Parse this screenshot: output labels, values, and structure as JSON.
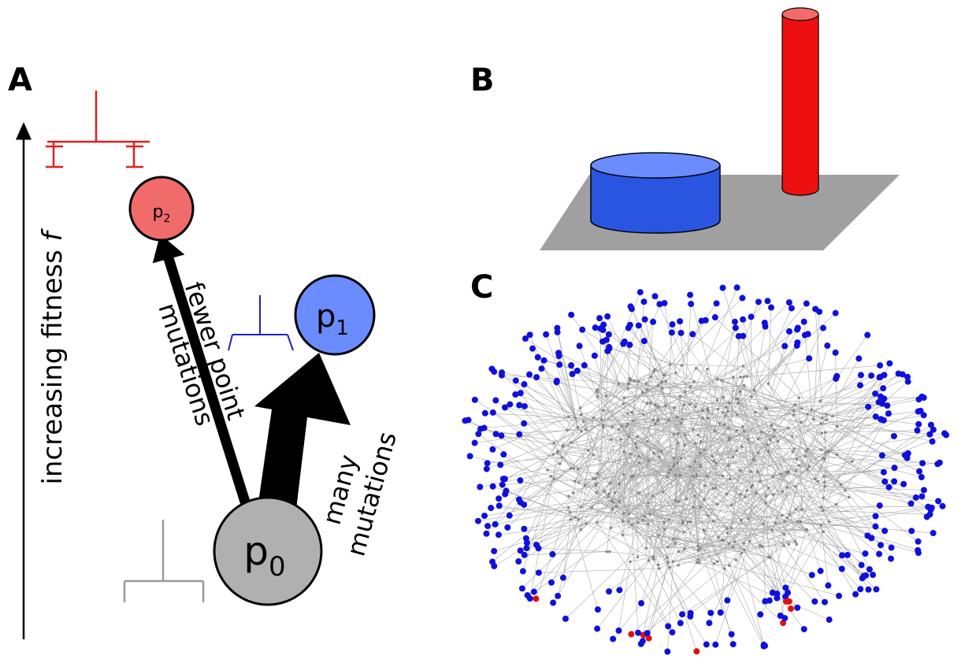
{
  "panels": {
    "a": {
      "letter": "A",
      "axis_label": "increasing fitness",
      "axis_symbol": "f",
      "nodes": [
        {
          "label": "p",
          "sub": "2"
        },
        {
          "label": "p",
          "sub": "1"
        },
        {
          "label": "p",
          "sub": "0"
        }
      ],
      "arrows": [
        {
          "label_lines": [
            "fewer point",
            "mutations"
          ]
        },
        {
          "label_lines": [
            "many",
            "mutations"
          ]
        }
      ]
    },
    "b": {
      "letter": "B"
    },
    "c": {
      "letter": "C"
    }
  }
}
